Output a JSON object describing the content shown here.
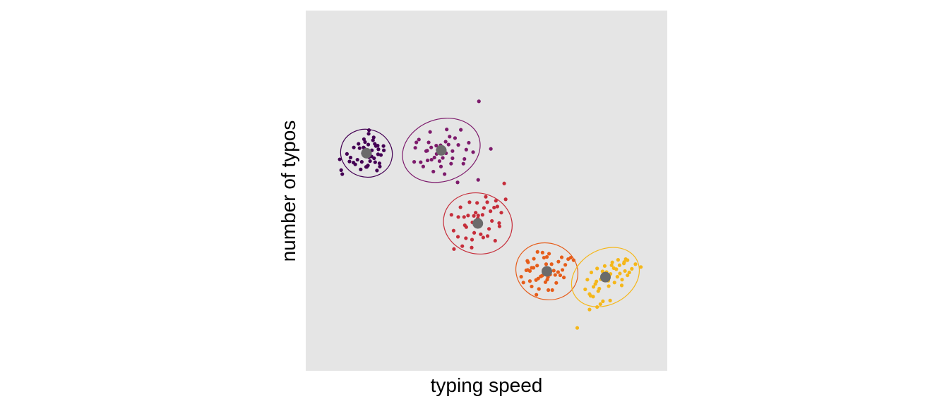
{
  "chart_data": {
    "type": "scatter",
    "title": "",
    "xlabel": "typing speed",
    "ylabel": "number of typos",
    "xlim": [
      0,
      100
    ],
    "ylim": [
      0,
      100
    ],
    "grid": false,
    "legend": "none",
    "panel_background": "#e5e5e5",
    "centroid_color": "#6b6b6b",
    "series": [
      {
        "color": "#440154",
        "center": [
          16.8,
          60.4
        ],
        "ellipse": {
          "rx": 6.6,
          "ry": 7.2,
          "angle": -75
        },
        "points": [
          [
            9.8,
            55.7
          ],
          [
            10.1,
            54.6
          ],
          [
            9.4,
            58.7
          ],
          [
            11.4,
            60.2
          ],
          [
            12.4,
            59.2
          ],
          [
            13.7,
            57.3
          ],
          [
            14.3,
            58.6
          ],
          [
            15.2,
            55.9
          ],
          [
            15.5,
            58.0
          ],
          [
            16.0,
            62.0
          ],
          [
            16.4,
            63.5
          ],
          [
            17.0,
            61.3
          ],
          [
            17.4,
            65.8
          ],
          [
            17.8,
            58.2
          ],
          [
            18.2,
            59.5
          ],
          [
            18.8,
            64.8
          ],
          [
            19.1,
            63.0
          ],
          [
            19.4,
            62.4
          ],
          [
            20.0,
            60.1
          ],
          [
            20.4,
            57.6
          ],
          [
            20.8,
            59.9
          ],
          [
            21.5,
            62.4
          ],
          [
            16.7,
            56.6
          ],
          [
            15.8,
            60.4
          ],
          [
            14.6,
            63.0
          ],
          [
            17.3,
            62.8
          ],
          [
            19.7,
            55.6
          ],
          [
            13.3,
            62.0
          ],
          [
            18.6,
            64.0
          ],
          [
            19.2,
            57.9
          ],
          [
            16.9,
            56.6
          ],
          [
            17.5,
            59.3
          ],
          [
            18.3,
            61.2
          ],
          [
            14.9,
            61.8
          ],
          [
            16.1,
            64.3
          ],
          [
            12.1,
            58.1
          ],
          [
            20.5,
            56.7
          ],
          [
            17.5,
            66.8
          ],
          [
            18.9,
            59.0
          ],
          [
            19.9,
            62.5
          ],
          [
            17.2,
            57.0
          ],
          [
            20.1,
            61.5
          ],
          [
            13.2,
            57.8
          ],
          [
            16.3,
            61.6
          ],
          [
            21.6,
            61.2
          ]
        ]
      },
      {
        "color": "#7d1b6c",
        "center": [
          37.5,
          61.2
        ],
        "ellipse": {
          "rx": 11.0,
          "ry": 8.6,
          "angle": -20
        },
        "points": [
          [
            30.0,
            58.0
          ],
          [
            30.3,
            61.9
          ],
          [
            31.3,
            64.2
          ],
          [
            31.8,
            57.9
          ],
          [
            32.5,
            56.7
          ],
          [
            33.3,
            61.0
          ],
          [
            33.7,
            58.4
          ],
          [
            34.0,
            63.4
          ],
          [
            34.4,
            66.3
          ],
          [
            34.8,
            58.6
          ],
          [
            35.3,
            55.3
          ],
          [
            35.6,
            59.2
          ],
          [
            36.1,
            62.5
          ],
          [
            36.5,
            61.3
          ],
          [
            37.0,
            58.2
          ],
          [
            37.4,
            56.7
          ],
          [
            37.9,
            59.1
          ],
          [
            38.4,
            54.6
          ],
          [
            38.8,
            60.4
          ],
          [
            39.5,
            62.8
          ],
          [
            40.2,
            57.5
          ],
          [
            40.6,
            59.0
          ],
          [
            41.3,
            64.6
          ],
          [
            42.2,
            62.7
          ],
          [
            42.9,
            66.9
          ],
          [
            43.6,
            57.5
          ],
          [
            44.4,
            61.4
          ],
          [
            45.1,
            63.3
          ],
          [
            46.3,
            60.7
          ],
          [
            47.7,
            53.0
          ],
          [
            51.2,
            61.6
          ],
          [
            47.9,
            74.8
          ],
          [
            42.0,
            52.3
          ],
          [
            36.2,
            60.2
          ],
          [
            38.7,
            63.6
          ],
          [
            39.0,
            67.0
          ],
          [
            34.7,
            62.0
          ],
          [
            39.8,
            65.0
          ],
          [
            30.6,
            63.4
          ],
          [
            37.3,
            62.6
          ],
          [
            33.6,
            61.1
          ],
          [
            43.9,
            58.8
          ],
          [
            40.6,
            61.0
          ]
        ]
      },
      {
        "color": "#c62d3a",
        "center": [
          47.6,
          40.9
        ],
        "ellipse": {
          "rx": 8.4,
          "ry": 9.6,
          "angle": -75
        },
        "points": [
          [
            40.3,
            43.3
          ],
          [
            40.9,
            38.9
          ],
          [
            42.1,
            37.2
          ],
          [
            42.8,
            45.4
          ],
          [
            43.3,
            34.6
          ],
          [
            43.8,
            42.7
          ],
          [
            44.4,
            39.9
          ],
          [
            44.9,
            43.1
          ],
          [
            45.3,
            46.8
          ],
          [
            46.1,
            41.2
          ],
          [
            46.6,
            38.3
          ],
          [
            47.0,
            43.9
          ],
          [
            47.4,
            46.6
          ],
          [
            47.9,
            40.2
          ],
          [
            48.4,
            37.9
          ],
          [
            48.9,
            43.3
          ],
          [
            49.3,
            45.2
          ],
          [
            49.8,
            48.3
          ],
          [
            50.3,
            37.4
          ],
          [
            50.7,
            39.4
          ],
          [
            51.5,
            41.6
          ],
          [
            52.1,
            45.3
          ],
          [
            52.6,
            47.2
          ],
          [
            53.0,
            45.6
          ],
          [
            53.5,
            41.0
          ],
          [
            54.1,
            43.9
          ],
          [
            54.9,
            52.0
          ],
          [
            47.7,
            43.1
          ],
          [
            46.0,
            36.4
          ],
          [
            51.1,
            44.3
          ],
          [
            45.9,
            34.2
          ],
          [
            47.6,
            42.3
          ],
          [
            44.3,
            36.8
          ],
          [
            50.2,
            46.8
          ],
          [
            44.0,
            40.4
          ],
          [
            49.1,
            37.0
          ],
          [
            41.0,
            33.8
          ],
          [
            55.3,
            47.6
          ],
          [
            52.4,
            36.1
          ],
          [
            46.5,
            43.0
          ],
          [
            47.6,
            42.2
          ],
          [
            42.2,
            42.7
          ],
          [
            53.6,
            40.1
          ]
        ]
      },
      {
        "color": "#e65d1a",
        "center": [
          66.7,
          27.6
        ],
        "ellipse": {
          "rx": 7.8,
          "ry": 8.7,
          "angle": -70
        },
        "points": [
          [
            59.6,
            26.1
          ],
          [
            60.2,
            24.5
          ],
          [
            61.0,
            27.9
          ],
          [
            61.5,
            30.1
          ],
          [
            62.0,
            24.9
          ],
          [
            62.5,
            28.6
          ],
          [
            63.1,
            31.1
          ],
          [
            63.7,
            25.2
          ],
          [
            64.0,
            29.2
          ],
          [
            64.5,
            22.7
          ],
          [
            65.0,
            26.2
          ],
          [
            65.5,
            32.8
          ],
          [
            65.8,
            28.0
          ],
          [
            66.3,
            24.6
          ],
          [
            66.7,
            31.6
          ],
          [
            67.1,
            22.4
          ],
          [
            67.6,
            26.7
          ],
          [
            68.0,
            29.6
          ],
          [
            68.6,
            27.8
          ],
          [
            69.3,
            24.4
          ],
          [
            69.9,
            30.3
          ],
          [
            70.4,
            26.5
          ],
          [
            71.0,
            28.0
          ],
          [
            71.4,
            25.9
          ],
          [
            71.8,
            29.4
          ],
          [
            72.6,
            31.0
          ],
          [
            73.3,
            31.4
          ],
          [
            74.1,
            30.7
          ],
          [
            64.1,
            33.0
          ],
          [
            61.3,
            30.5
          ],
          [
            65.4,
            26.4
          ],
          [
            67.3,
            32.5
          ],
          [
            62.5,
            23.4
          ],
          [
            66.5,
            29.6
          ],
          [
            69.8,
            27.4
          ],
          [
            68.2,
            22.4
          ],
          [
            63.0,
            28.6
          ],
          [
            66.8,
            25.3
          ],
          [
            63.8,
            21.1
          ],
          [
            65.9,
            31.4
          ],
          [
            67.0,
            26.0
          ],
          [
            70.8,
            31.5
          ],
          [
            62.0,
            27.7
          ],
          [
            69.0,
            26.6
          ],
          [
            64.3,
            25.6
          ],
          [
            61.4,
            28.0
          ]
        ]
      },
      {
        "color": "#f5b71a",
        "center": [
          82.9,
          26.0
        ],
        "ellipse": {
          "rx": 9.9,
          "ry": 7.6,
          "angle": -30
        },
        "points": [
          [
            77.3,
            22.6
          ],
          [
            77.9,
            25.3
          ],
          [
            78.5,
            21.3
          ],
          [
            79.0,
            27.3
          ],
          [
            79.5,
            20.6
          ],
          [
            80.1,
            24.1
          ],
          [
            80.6,
            28.4
          ],
          [
            81.2,
            22.8
          ],
          [
            81.6,
            25.4
          ],
          [
            82.2,
            19.3
          ],
          [
            82.7,
            29.1
          ],
          [
            83.2,
            27.4
          ],
          [
            83.8,
            23.5
          ],
          [
            84.3,
            26.9
          ],
          [
            84.8,
            30.1
          ],
          [
            85.4,
            24.5
          ],
          [
            85.9,
            28.2
          ],
          [
            86.4,
            30.8
          ],
          [
            86.9,
            27.0
          ],
          [
            87.4,
            23.7
          ],
          [
            88.0,
            29.8
          ],
          [
            88.5,
            31.0
          ],
          [
            89.0,
            26.5
          ],
          [
            89.5,
            27.3
          ],
          [
            90.2,
            28.3
          ],
          [
            91.2,
            29.6
          ],
          [
            92.7,
            28.8
          ],
          [
            75.1,
            11.9
          ],
          [
            80.6,
            17.7
          ],
          [
            81.5,
            18.5
          ],
          [
            84.2,
            19.5
          ],
          [
            78.8,
            20.8
          ],
          [
            83.9,
            26.3
          ],
          [
            82.1,
            27.6
          ],
          [
            86.8,
            29.3
          ],
          [
            87.5,
            25.3
          ],
          [
            88.3,
            27.7
          ],
          [
            79.6,
            23.3
          ],
          [
            84.6,
            29.3
          ],
          [
            80.9,
            22.1
          ],
          [
            89.0,
            30.7
          ],
          [
            86.2,
            26.1
          ],
          [
            78.5,
            17.0
          ],
          [
            83.7,
            25.0
          ],
          [
            85.2,
            28.5
          ],
          [
            80.4,
            24.8
          ],
          [
            88.1,
            30.2
          ]
        ]
      }
    ]
  }
}
